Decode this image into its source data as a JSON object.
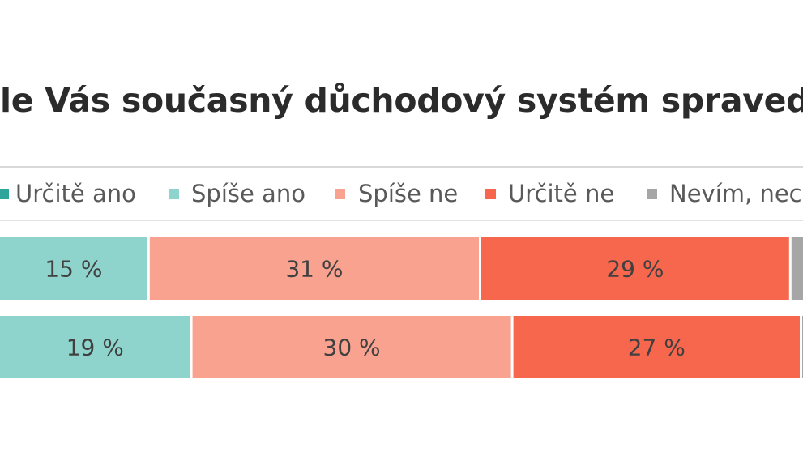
{
  "chart_data": {
    "type": "bar",
    "orientation": "horizontal",
    "stacked": true,
    "title": "le Vás současný důchodový systém spravedli",
    "legend": {
      "placement": "top",
      "entries": [
        "Určitě ano",
        "Spíše ano",
        "Spíše ne",
        "Určitě ne",
        "Nevím, nec"
      ]
    },
    "series": [
      {
        "name": "Spíše ano",
        "color": "#8fd4cc",
        "values": [
          15,
          19
        ],
        "labels": [
          "15 %",
          "19 %"
        ]
      },
      {
        "name": "Spíše ne",
        "color": "#f9a28f",
        "values": [
          31,
          30
        ],
        "labels": [
          "31 %",
          "30 %"
        ]
      },
      {
        "name": "Určitě ne",
        "color": "#f6674d",
        "values": [
          29,
          27
        ],
        "labels": [
          "29 %",
          "27 %"
        ]
      }
    ],
    "legend_colors": [
      "#2fa59c",
      "#8fd4cc",
      "#f9a28f",
      "#f6674d",
      "#a6a6a6"
    ],
    "visible_left_percent": [
      14,
      18
    ],
    "grid": false
  }
}
